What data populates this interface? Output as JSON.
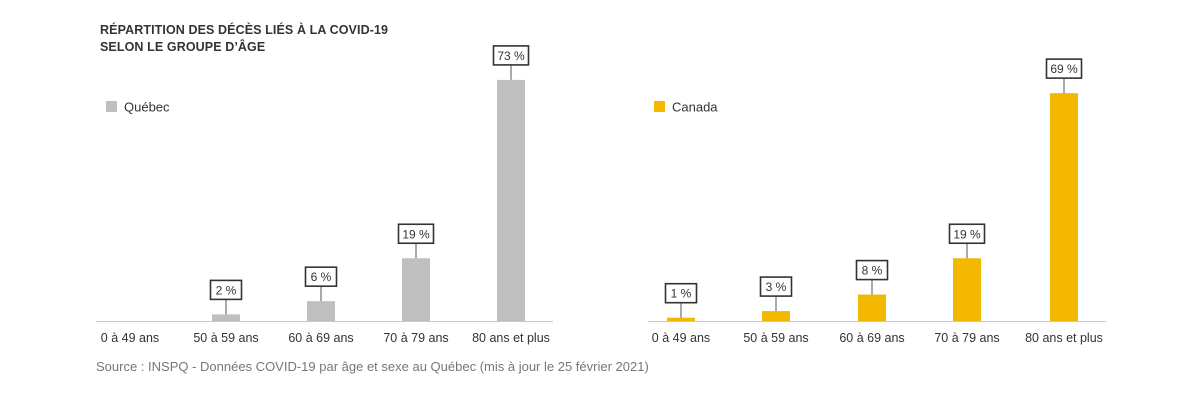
{
  "title_lines": [
    "RÉPARTITION DES DÉCÈS LIÉS À LA COVID-19",
    "SELON LE GROUPE D’ÂGE"
  ],
  "source": "Source : INSPQ - Données COVID-19 par âge et sexe au Québec (mis à jour le 25 février 2021)",
  "chart_data": [
    {
      "type": "bar",
      "categories": [
        "0 à 49 ans",
        "50 à 59 ans",
        "60 à 69 ans",
        "70 à 79 ans",
        "80 ans et plus"
      ],
      "series": [
        {
          "name": "Québec",
          "values": [
            0,
            2,
            6,
            19,
            73
          ],
          "labels": [
            "",
            "2 %",
            "6 %",
            "19 %",
            "73 %"
          ]
        }
      ],
      "color": "#bfbfbf",
      "legend": "top-left",
      "ylim": [
        0,
        76
      ],
      "grid": false
    },
    {
      "type": "bar",
      "categories": [
        "0 à 49 ans",
        "50 à 59 ans",
        "60 à 69 ans",
        "70 à 79 ans",
        "80 ans et plus"
      ],
      "series": [
        {
          "name": "Canada",
          "values": [
            1,
            3,
            8,
            19,
            69
          ],
          "labels": [
            "1 %",
            "3 %",
            "8 %",
            "19 %",
            "69 %"
          ]
        }
      ],
      "color": "#f5b800",
      "legend": "top-left",
      "ylim": [
        0,
        76
      ],
      "grid": false
    }
  ]
}
